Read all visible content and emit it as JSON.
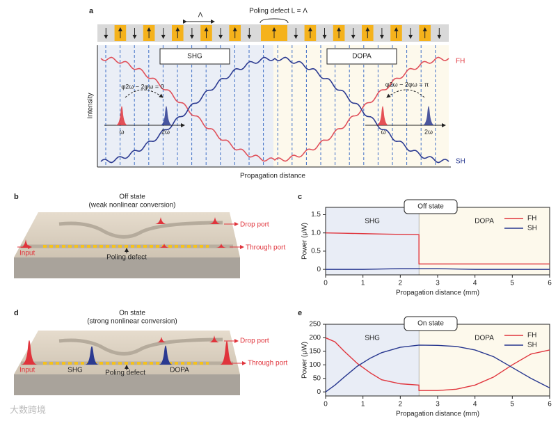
{
  "panel_a": {
    "label": "a",
    "period": "Λ",
    "defect": "Poling defect L = Λ",
    "shg": "SHG",
    "dopa": "DOPA",
    "fh": "FH",
    "sh": "SH",
    "y_label": "Intensity",
    "x_label": "Propagation distance",
    "phase_left": "φ2ω − 2φω = 0",
    "phase_right": "φ2ω − 2φω = π",
    "omega_left": "ω",
    "two_omega_left": "2ω",
    "omega_right": "ω",
    "two_omega_right": "2ω"
  },
  "panel_b": {
    "label": "b",
    "title": "Off state",
    "subtitle": "(weak nonlinear conversion)",
    "drop": "Drop port",
    "through": "Through port",
    "input": "Input",
    "defect": "Poling defect"
  },
  "panel_d": {
    "label": "d",
    "title": "On state",
    "subtitle": "(strong nonlinear conversion)",
    "drop": "Drop port",
    "through": "Through port",
    "input": "Input",
    "shg": "SHG",
    "defect": "Poling defect",
    "dopa": "DOPA"
  },
  "watermark": "大数跨境",
  "chart_data": [
    {
      "type": "line",
      "label": "c",
      "title": "Off state",
      "x_label": "Propagation distance (mm)",
      "y_label": "Power (μW)",
      "x": [
        0,
        0.5,
        1,
        1.5,
        2,
        2.5,
        2.5,
        3,
        4,
        5,
        6
      ],
      "series": [
        {
          "name": "FH",
          "color": "#e0343c",
          "values": [
            1.0,
            0.99,
            0.98,
            0.97,
            0.96,
            0.95,
            0.15,
            0.15,
            0.15,
            0.15,
            0.15
          ]
        },
        {
          "name": "SH",
          "color": "#27378f",
          "values": [
            0,
            0,
            0,
            0.01,
            0.02,
            0.02,
            0.02,
            0.02,
            0,
            0,
            0
          ]
        }
      ],
      "regions": [
        {
          "label": "SHG",
          "from": 0,
          "to": 2.5,
          "color": "#e9edf6"
        },
        {
          "label": "DOPA",
          "from": 2.5,
          "to": 6,
          "color": "#fdf9ec"
        }
      ],
      "xlim": [
        0,
        6
      ],
      "xticks": [
        0,
        1,
        2,
        3,
        4,
        5,
        6
      ],
      "ylim": [
        -0.15,
        1.7
      ],
      "yticks": [
        0,
        0.5,
        {
          "value": 1,
          "label": "1.0"
        },
        1.5
      ],
      "legend": "upper right"
    },
    {
      "type": "line",
      "label": "e",
      "title": "On state",
      "x_label": "Propagation distance (mm)",
      "y_label": "Power (μW)",
      "x": [
        0,
        0.25,
        0.5,
        0.85,
        1.2,
        1.5,
        2,
        2.5,
        2.5,
        3,
        3.5,
        4,
        4.5,
        5,
        5.5,
        6
      ],
      "series": [
        {
          "name": "FH",
          "color": "#e0343c",
          "values": [
            200,
            185,
            150,
            105,
            70,
            45,
            30,
            25,
            5,
            5,
            10,
            25,
            55,
            100,
            140,
            155
          ]
        },
        {
          "name": "SH",
          "color": "#27378f",
          "values": [
            0,
            25,
            55,
            95,
            125,
            145,
            165,
            173,
            173,
            172,
            168,
            155,
            130,
            90,
            50,
            15
          ]
        }
      ],
      "regions": [
        {
          "label": "SHG",
          "from": 0,
          "to": 2.5,
          "color": "#e9edf6"
        },
        {
          "label": "DOPA",
          "from": 2.5,
          "to": 6,
          "color": "#fdf9ec"
        }
      ],
      "xlim": [
        0,
        6
      ],
      "xticks": [
        0,
        1,
        2,
        3,
        4,
        5,
        6
      ],
      "ylim": [
        -15,
        250
      ],
      "yticks": [
        0,
        50,
        100,
        150,
        200,
        250
      ],
      "legend": "upper right"
    }
  ]
}
